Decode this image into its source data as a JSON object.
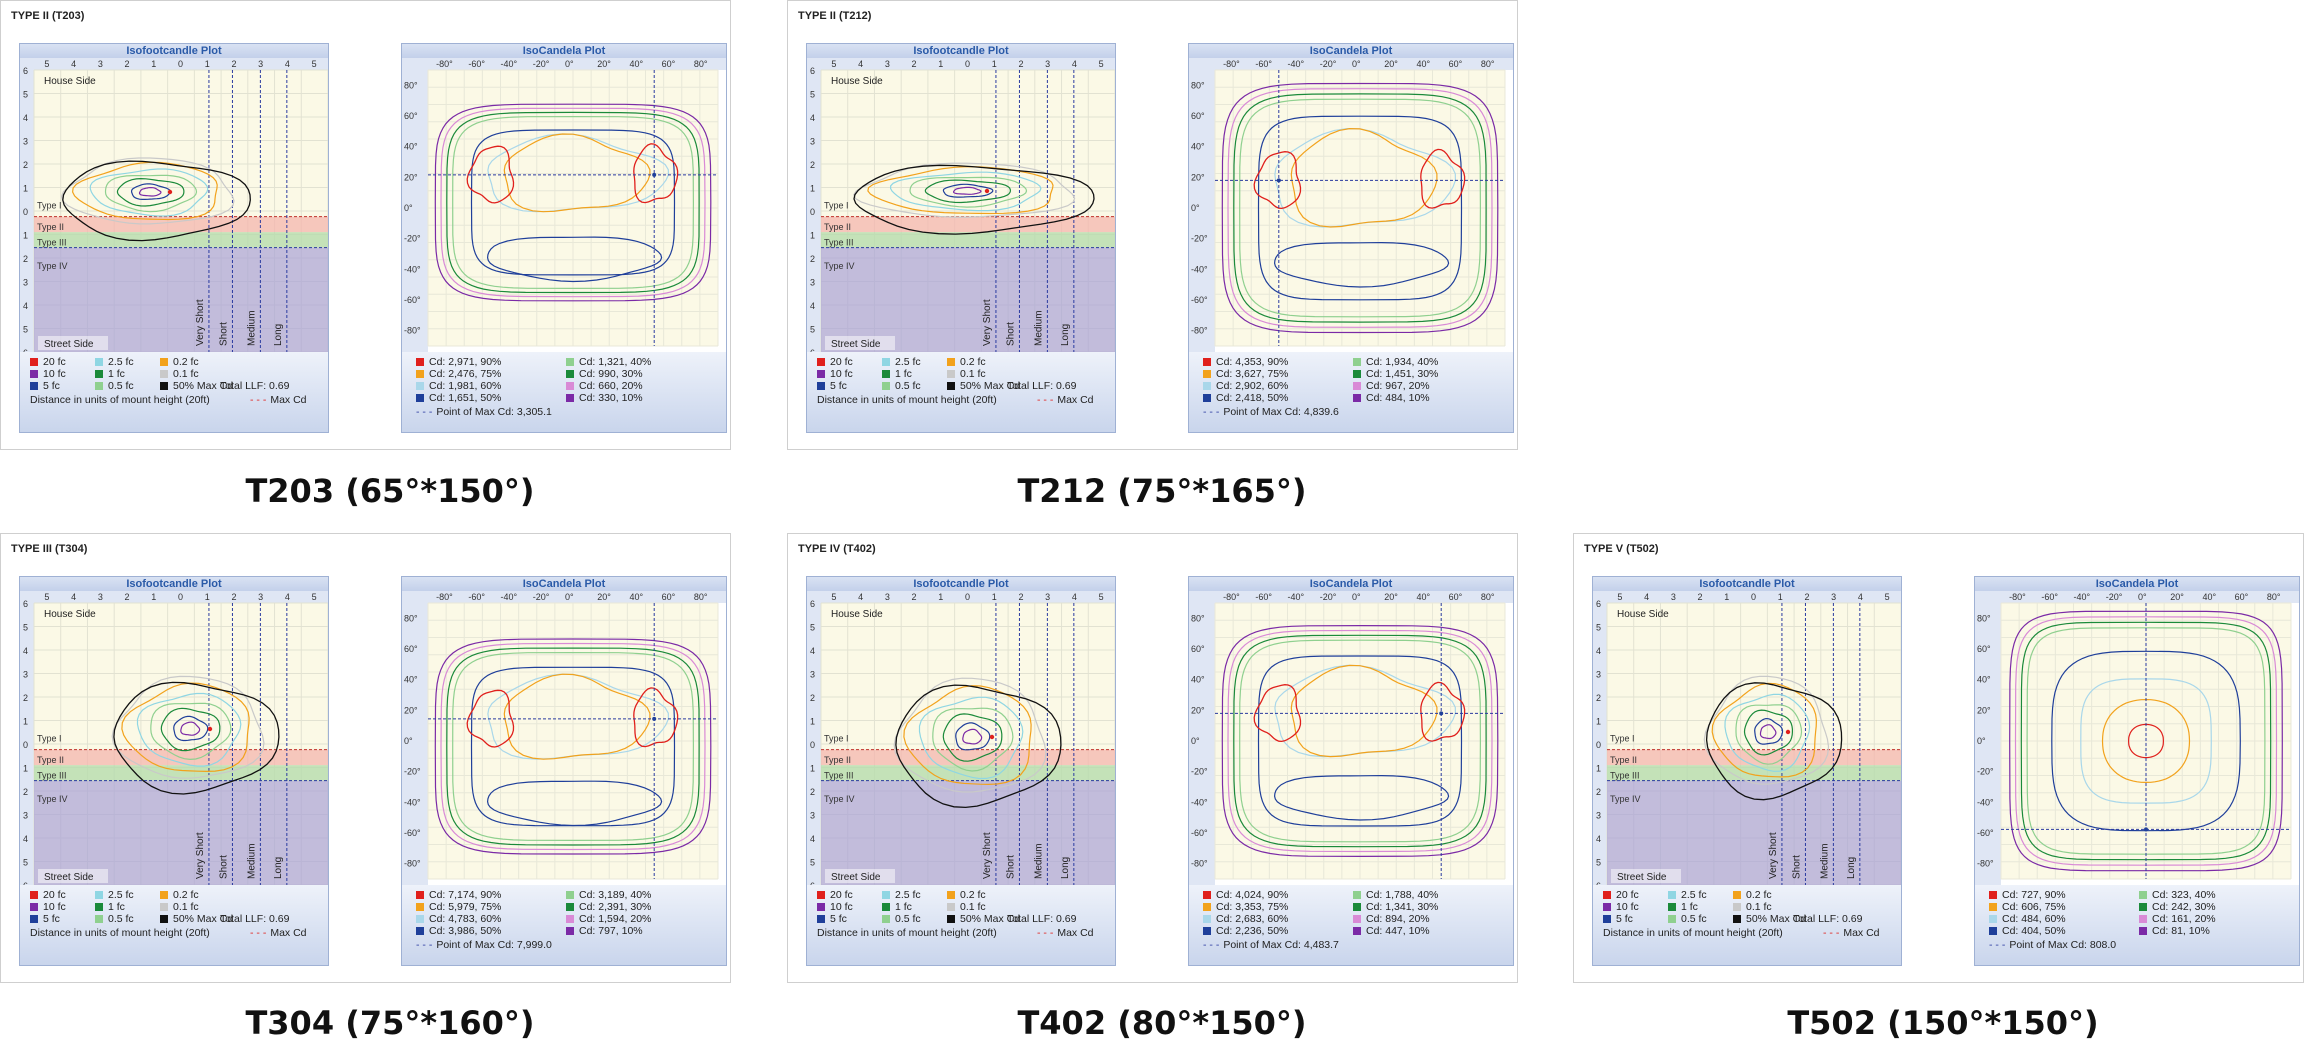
{
  "colors": {
    "20fc": "#e0201c",
    "10fc": "#7b2aa6",
    "5fc": "#1f3f9a",
    "2.5fc": "#8fd6e3",
    "1fc": "#1b8a3a",
    "0.5fc": "#8fd08f",
    "0.2fc": "#f2a21c",
    "0.1fc": "#c9c9c9",
    "50pct": "#111111",
    "cd90": "#e0201c",
    "cd75": "#f2a21c",
    "cd60": "#a9d7ea",
    "cd50": "#1f3f9a",
    "cd40": "#8fd08f",
    "cd30": "#1b8a3a",
    "cd20": "#d98ad6",
    "cd10": "#7b2aa6"
  },
  "iso_fc": {
    "title": "Isofootcandle Plot",
    "top_ticks": [
      "5",
      "4",
      "3",
      "2",
      "1",
      "0",
      "1",
      "2",
      "3",
      "4",
      "5"
    ],
    "left_ticks": [
      "6",
      "5",
      "4",
      "3",
      "2",
      "1",
      "0",
      "1",
      "2",
      "3",
      "4",
      "5",
      "6"
    ],
    "house_side": "House Side",
    "street_side": "Street Side",
    "zones": [
      "Type I",
      "Type II",
      "Type III",
      "Type IV"
    ],
    "lengths": [
      "Very Short",
      "Short",
      "Medium",
      "Long"
    ],
    "legend": [
      {
        "label": "20 fc",
        "color": "#e0201c"
      },
      {
        "label": "2.5 fc",
        "color": "#8fd6e3"
      },
      {
        "label": "0.2 fc",
        "color": "#f2a21c"
      },
      {
        "label": "10 fc",
        "color": "#7b2aa6"
      },
      {
        "label": "1 fc",
        "color": "#1b8a3a"
      },
      {
        "label": "0.1 fc",
        "color": "#c9c9c9"
      },
      {
        "label": "5 fc",
        "color": "#1f3f9a"
      },
      {
        "label": "0.5 fc",
        "color": "#8fd08f"
      },
      {
        "label": "50% Max Cd",
        "color": "#111111"
      }
    ],
    "total_llf": "Total LLF: 0.69",
    "distance_note": "Distance in units of mount height (20ft)",
    "max_cd": "Max Cd"
  },
  "iso_cd": {
    "title": "IsoCandela Plot",
    "h_ticks": [
      "-80°",
      "-60°",
      "-40°",
      "-20°",
      "0°",
      "20°",
      "40°",
      "60°",
      "80°"
    ],
    "v_ticks": [
      "80°",
      "60°",
      "40°",
      "20°",
      "0°",
      "-20°",
      "-40°",
      "-60°",
      "-80°"
    ]
  },
  "cards": [
    {
      "id": "t203",
      "title": "TYPE II (T203)",
      "caption": "T203 (65°*150°)",
      "cd": [
        "Cd: 2,971, 90%",
        "Cd: 1,321, 40%",
        "Cd: 2,476, 75%",
        "Cd: 990, 30%",
        "Cd: 1,981, 60%",
        "Cd: 660, 20%",
        "Cd: 1,651, 50%",
        "Cd: 330, 10%"
      ],
      "max_point": "Point of Max Cd: 3,305.1"
    },
    {
      "id": "t212",
      "title": "TYPE II (T212)",
      "caption": "T212 (75°*165°)",
      "cd": [
        "Cd: 4,353, 90%",
        "Cd: 1,934, 40%",
        "Cd: 3,627, 75%",
        "Cd: 1,451, 30%",
        "Cd: 2,902, 60%",
        "Cd: 967, 20%",
        "Cd: 2,418, 50%",
        "Cd: 484, 10%"
      ],
      "max_point": "Point of Max Cd: 4,839.6"
    },
    {
      "id": "t304",
      "title": "TYPE III (T304)",
      "caption": "T304 (75°*160°)",
      "cd": [
        "Cd: 7,174, 90%",
        "Cd: 3,189, 40%",
        "Cd: 5,979, 75%",
        "Cd: 2,391, 30%",
        "Cd: 4,783, 60%",
        "Cd: 1,594, 20%",
        "Cd: 3,986, 50%",
        "Cd: 797, 10%"
      ],
      "max_point": "Point of Max Cd: 7,999.0"
    },
    {
      "id": "t402",
      "title": "TYPE IV (T402)",
      "caption": "T402 (80°*150°)",
      "cd": [
        "Cd: 4,024, 90%",
        "Cd: 1,788, 40%",
        "Cd: 3,353, 75%",
        "Cd: 1,341, 30%",
        "Cd: 2,683, 60%",
        "Cd: 894, 20%",
        "Cd: 2,236, 50%",
        "Cd: 447, 10%"
      ],
      "max_point": "Point of Max Cd: 4,483.7"
    },
    {
      "id": "t502",
      "title": "TYPE V (T502)",
      "caption": "T502 (150°*150°)",
      "cd": [
        "Cd: 727, 90%",
        "Cd: 323, 40%",
        "Cd: 606, 75%",
        "Cd: 242, 30%",
        "Cd: 484, 60%",
        "Cd: 161, 20%",
        "Cd: 404, 50%",
        "Cd: 81, 10%"
      ],
      "max_point": "Point of Max Cd: 808.0"
    }
  ]
}
